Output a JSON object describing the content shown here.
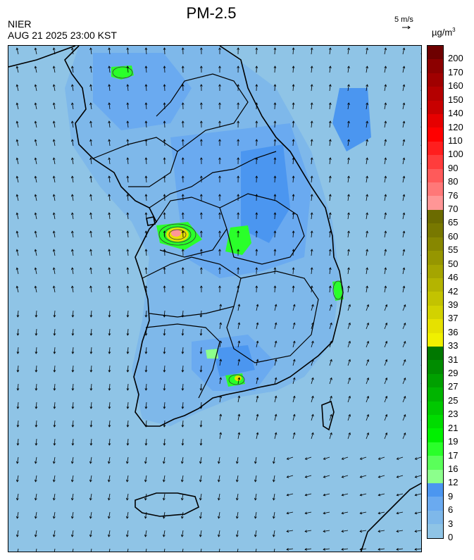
{
  "title": "PM-2.5",
  "agency": "NIER",
  "timestamp": "AUG 21 2025 23:00 KST",
  "wind_scale_label": "5 m/s",
  "unit": "µg/m",
  "unit_superscript": "3",
  "legend": {
    "colors": [
      "#8fc4e6",
      "#7eb8ea",
      "#6aaaf0",
      "#4b96f0",
      "#8cff8c",
      "#5aff5a",
      "#2aff2a",
      "#00f000",
      "#00dc00",
      "#00c800",
      "#00b400",
      "#00a000",
      "#008c00",
      "#007800",
      "#f0f000",
      "#e6e100",
      "#d2d200",
      "#c3c300",
      "#b4b400",
      "#a5a500",
      "#969600",
      "#878700",
      "#787800",
      "#6b6b00",
      "#ff9696",
      "#ff7878",
      "#ff5a5a",
      "#ff3c3c",
      "#ff1e1e",
      "#ff0000",
      "#e60000",
      "#c80000",
      "#b40000",
      "#a00000",
      "#8c0000",
      "#6e0000"
    ],
    "labels": [
      "0",
      "3",
      "6",
      "9",
      "12",
      "16",
      "17",
      "19",
      "21",
      "23",
      "25",
      "27",
      "29",
      "31",
      "33",
      "36",
      "37",
      "39",
      "42",
      "46",
      "50",
      "55",
      "60",
      "65",
      "70",
      "76",
      "80",
      "90",
      "100",
      "110",
      "120",
      "140",
      "150",
      "160",
      "170",
      "200"
    ]
  },
  "map_colors": {
    "background": "#8fc4e6",
    "light": "#7eb8ea",
    "medium": "#6aaaf0",
    "dark": "#4b96f0",
    "green": "#2aff2a",
    "light_green": "#8cff8c",
    "yellow": "#e6e100",
    "olive": "#969600",
    "orange": "#ff9696",
    "outline": "#000000"
  }
}
